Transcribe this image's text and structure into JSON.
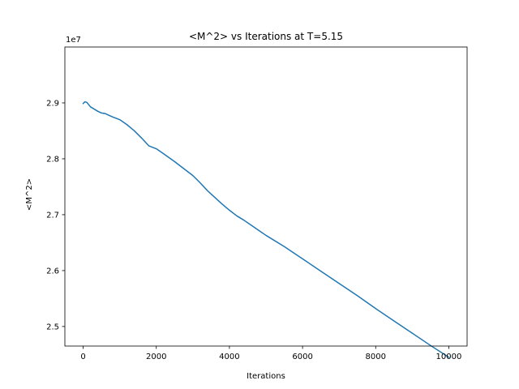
{
  "chart_data": {
    "type": "line",
    "title": "<M^2> vs Iterations at T=5.15",
    "xlabel": "Iterations",
    "ylabel": "<M^2>",
    "y_offset_label": "1e7",
    "y_scale_factor": 10000000,
    "xlim": [
      -500,
      10500
    ],
    "ylim": [
      2.465,
      3.0
    ],
    "grid": false,
    "xticks": [
      0,
      2000,
      4000,
      6000,
      8000,
      10000
    ],
    "xtick_labels": [
      "0",
      "2000",
      "4000",
      "6000",
      "8000",
      "10000"
    ],
    "yticks": [
      2.5,
      2.6,
      2.7,
      2.8,
      2.9
    ],
    "ytick_labels": [
      "2.5",
      "2.6",
      "2.7",
      "2.8",
      "2.9"
    ],
    "series": [
      {
        "color": "#1f77b4",
        "x": [
          0,
          50,
          100,
          150,
          200,
          300,
          400,
          500,
          600,
          700,
          800,
          1000,
          1200,
          1400,
          1600,
          1800,
          2000,
          2200,
          2500,
          2800,
          3000,
          3200,
          3400,
          3600,
          3800,
          4000,
          4200,
          4400,
          4600,
          4800,
          5000,
          5500,
          6000,
          6500,
          7000,
          7500,
          8000,
          8500,
          9000,
          9500,
          10000
        ],
        "y": [
          2.899,
          2.902,
          2.901,
          2.897,
          2.893,
          2.889,
          2.885,
          2.882,
          2.881,
          2.878,
          2.875,
          2.87,
          2.861,
          2.85,
          2.837,
          2.823,
          2.818,
          2.809,
          2.795,
          2.78,
          2.77,
          2.757,
          2.743,
          2.731,
          2.719,
          2.708,
          2.698,
          2.69,
          2.681,
          2.672,
          2.663,
          2.643,
          2.621,
          2.599,
          2.577,
          2.555,
          2.532,
          2.51,
          2.488,
          2.466,
          2.445
        ]
      }
    ]
  }
}
